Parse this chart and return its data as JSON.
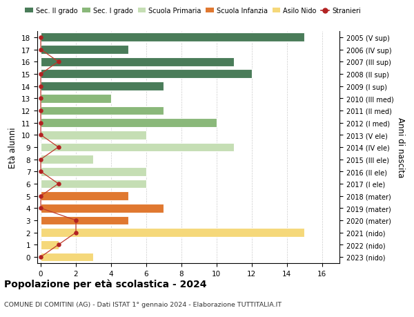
{
  "ages": [
    18,
    17,
    16,
    15,
    14,
    13,
    12,
    11,
    10,
    9,
    8,
    7,
    6,
    5,
    4,
    3,
    2,
    1,
    0
  ],
  "years_labels": [
    "2005 (V sup)",
    "2006 (IV sup)",
    "2007 (III sup)",
    "2008 (II sup)",
    "2009 (I sup)",
    "2010 (III med)",
    "2011 (II med)",
    "2012 (I med)",
    "2013 (V ele)",
    "2014 (IV ele)",
    "2015 (III ele)",
    "2016 (II ele)",
    "2017 (I ele)",
    "2018 (mater)",
    "2019 (mater)",
    "2020 (mater)",
    "2021 (nido)",
    "2022 (nido)",
    "2023 (nido)"
  ],
  "bar_values": [
    15,
    5,
    11,
    12,
    7,
    4,
    7,
    10,
    6,
    11,
    3,
    6,
    6,
    5,
    7,
    5,
    15,
    1,
    3
  ],
  "bar_colors": [
    "#4a7c59",
    "#4a7c59",
    "#4a7c59",
    "#4a7c59",
    "#4a7c59",
    "#8ab87a",
    "#8ab87a",
    "#8ab87a",
    "#c5deb4",
    "#c5deb4",
    "#c5deb4",
    "#c5deb4",
    "#c5deb4",
    "#e07830",
    "#e07830",
    "#e07830",
    "#f5d87a",
    "#f5d87a",
    "#f5d87a"
  ],
  "stranieri_values": [
    0,
    0,
    1,
    0,
    0,
    0,
    0,
    0,
    0,
    1,
    0,
    0,
    1,
    0,
    0,
    2,
    2,
    1,
    0
  ],
  "legend_labels": [
    "Sec. II grado",
    "Sec. I grado",
    "Scuola Primaria",
    "Scuola Infanzia",
    "Asilo Nido",
    "Stranieri"
  ],
  "legend_colors": [
    "#4a7c59",
    "#8ab87a",
    "#c5deb4",
    "#e07830",
    "#f5d87a",
    "#b22222"
  ],
  "title": "Popolazione per età scolastica - 2024",
  "subtitle": "COMUNE DI COMITINI (AG) - Dati ISTAT 1° gennaio 2024 - Elaborazione TUTTITALIA.IT",
  "ylabel_left": "Età alunni",
  "ylabel_right": "Anni di nascita",
  "xlim_max": 17,
  "xticks": [
    0,
    2,
    4,
    6,
    8,
    10,
    12,
    14,
    16
  ],
  "stranieri_color": "#b22222",
  "stranieri_line_color": "#c0392b",
  "bg_color": "#ffffff",
  "grid_color": "#cccccc",
  "bar_height": 0.72
}
